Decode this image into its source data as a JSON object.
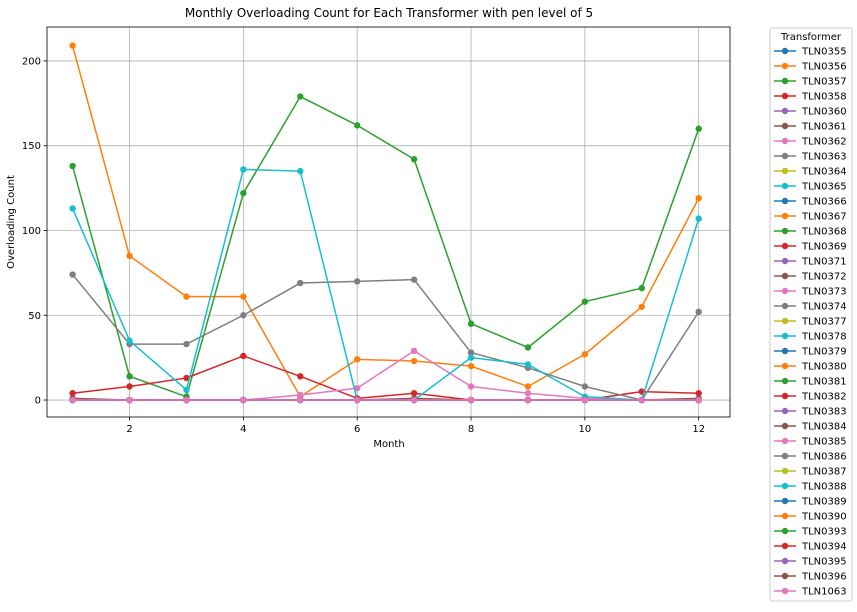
{
  "chart_data": {
    "type": "line",
    "title": "Monthly Overloading Count for Each Transformer with pen level of 5",
    "xlabel": "Month",
    "ylabel": "Overloading Count",
    "xlim": [
      0.55,
      12.55
    ],
    "ylim": [
      -10,
      220
    ],
    "x_ticks": [
      2,
      4,
      6,
      8,
      10,
      12
    ],
    "y_ticks": [
      0,
      50,
      100,
      150,
      200
    ],
    "grid": true,
    "legend_position": "outside-right",
    "legend_title": "Transformer",
    "x": [
      1,
      2,
      3,
      4,
      5,
      6,
      7,
      8,
      9,
      10,
      11,
      12
    ],
    "series": [
      {
        "name": "TLN0355",
        "color": "#1f77b4",
        "values": [
          0,
          0,
          0,
          0,
          0,
          0,
          0,
          0,
          0,
          0,
          0,
          0
        ]
      },
      {
        "name": "TLN0356",
        "color": "#ff7f0e",
        "values": [
          209,
          85,
          61,
          61,
          2,
          24,
          23,
          20,
          8,
          27,
          55,
          119
        ]
      },
      {
        "name": "TLN0357",
        "color": "#2ca02c",
        "values": [
          138,
          14,
          2,
          122,
          179,
          162,
          142,
          45,
          31,
          58,
          66,
          160
        ]
      },
      {
        "name": "TLN0358",
        "color": "#d62728",
        "values": [
          4,
          8,
          13,
          26,
          14,
          1,
          4,
          0,
          0,
          0,
          5,
          4
        ]
      },
      {
        "name": "TLN0360",
        "color": "#9467bd",
        "values": [
          0,
          0,
          0,
          0,
          0,
          0,
          0,
          0,
          0,
          0,
          0,
          0
        ]
      },
      {
        "name": "TLN0361",
        "color": "#8c564b",
        "values": [
          1,
          0,
          0,
          0,
          0,
          0,
          1,
          0,
          0,
          0,
          0,
          1
        ]
      },
      {
        "name": "TLN0362",
        "color": "#e377c2",
        "values": [
          0,
          0,
          0,
          0,
          3,
          7,
          29,
          8,
          4,
          1,
          0,
          0
        ]
      },
      {
        "name": "TLN0363",
        "color": "#7f7f7f",
        "values": [
          74,
          33,
          33,
          50,
          69,
          70,
          71,
          28,
          19,
          8,
          0,
          52
        ]
      },
      {
        "name": "TLN0364",
        "color": "#bcbd22",
        "values": [
          0,
          0,
          0,
          0,
          0,
          0,
          0,
          0,
          0,
          0,
          0,
          0
        ]
      },
      {
        "name": "TLN0365",
        "color": "#17becf",
        "values": [
          113,
          35,
          6,
          136,
          135,
          0,
          0,
          25,
          21,
          2,
          0,
          107
        ]
      },
      {
        "name": "TLN0366",
        "color": "#1f77b4",
        "values": [
          0,
          0,
          0,
          0,
          0,
          0,
          0,
          0,
          0,
          0,
          0,
          0
        ]
      },
      {
        "name": "TLN0367",
        "color": "#ff7f0e",
        "values": [
          0,
          0,
          0,
          0,
          0,
          0,
          0,
          0,
          0,
          0,
          0,
          0
        ]
      },
      {
        "name": "TLN0368",
        "color": "#2ca02c",
        "values": [
          0,
          0,
          0,
          0,
          0,
          0,
          0,
          0,
          0,
          0,
          0,
          0
        ]
      },
      {
        "name": "TLN0369",
        "color": "#d62728",
        "values": [
          0,
          0,
          0,
          0,
          0,
          0,
          0,
          0,
          0,
          0,
          0,
          0
        ]
      },
      {
        "name": "TLN0371",
        "color": "#9467bd",
        "values": [
          0,
          0,
          0,
          0,
          0,
          0,
          0,
          0,
          0,
          0,
          0,
          0
        ]
      },
      {
        "name": "TLN0372",
        "color": "#8c564b",
        "values": [
          0,
          0,
          0,
          0,
          0,
          0,
          0,
          0,
          0,
          0,
          0,
          0
        ]
      },
      {
        "name": "TLN0373",
        "color": "#e377c2",
        "values": [
          0,
          0,
          0,
          0,
          0,
          0,
          0,
          0,
          0,
          0,
          0,
          0
        ]
      },
      {
        "name": "TLN0374",
        "color": "#7f7f7f",
        "values": [
          0,
          0,
          0,
          0,
          0,
          0,
          0,
          0,
          0,
          0,
          0,
          0
        ]
      },
      {
        "name": "TLN0377",
        "color": "#bcbd22",
        "values": [
          0,
          0,
          0,
          0,
          0,
          0,
          0,
          0,
          0,
          0,
          0,
          0
        ]
      },
      {
        "name": "TLN0378",
        "color": "#17becf",
        "values": [
          0,
          0,
          0,
          0,
          0,
          0,
          0,
          0,
          0,
          0,
          0,
          0
        ]
      },
      {
        "name": "TLN0379",
        "color": "#1f77b4",
        "values": [
          0,
          0,
          0,
          0,
          0,
          0,
          0,
          0,
          0,
          0,
          0,
          0
        ]
      },
      {
        "name": "TLN0380",
        "color": "#ff7f0e",
        "values": [
          0,
          0,
          0,
          0,
          0,
          0,
          0,
          0,
          0,
          0,
          0,
          0
        ]
      },
      {
        "name": "TLN0381",
        "color": "#2ca02c",
        "values": [
          0,
          0,
          0,
          0,
          0,
          0,
          0,
          0,
          0,
          0,
          0,
          0
        ]
      },
      {
        "name": "TLN0382",
        "color": "#d62728",
        "values": [
          0,
          0,
          0,
          0,
          0,
          0,
          0,
          0,
          0,
          0,
          0,
          0
        ]
      },
      {
        "name": "TLN0383",
        "color": "#9467bd",
        "values": [
          0,
          0,
          0,
          0,
          0,
          0,
          0,
          0,
          0,
          0,
          0,
          0
        ]
      },
      {
        "name": "TLN0384",
        "color": "#8c564b",
        "values": [
          0,
          0,
          0,
          0,
          0,
          0,
          0,
          0,
          0,
          0,
          0,
          0
        ]
      },
      {
        "name": "TLN0385",
        "color": "#e377c2",
        "values": [
          0,
          0,
          0,
          0,
          0,
          0,
          0,
          0,
          0,
          0,
          0,
          0
        ]
      },
      {
        "name": "TLN0386",
        "color": "#7f7f7f",
        "values": [
          0,
          0,
          0,
          0,
          0,
          0,
          0,
          0,
          0,
          0,
          0,
          0
        ]
      },
      {
        "name": "TLN0387",
        "color": "#bcbd22",
        "values": [
          0,
          0,
          0,
          0,
          0,
          0,
          0,
          0,
          0,
          0,
          0,
          0
        ]
      },
      {
        "name": "TLN0388",
        "color": "#17becf",
        "values": [
          0,
          0,
          0,
          0,
          0,
          0,
          0,
          0,
          0,
          0,
          0,
          0
        ]
      },
      {
        "name": "TLN0389",
        "color": "#1f77b4",
        "values": [
          0,
          0,
          0,
          0,
          0,
          0,
          0,
          0,
          0,
          0,
          0,
          0
        ]
      },
      {
        "name": "TLN0390",
        "color": "#ff7f0e",
        "values": [
          0,
          0,
          0,
          0,
          0,
          0,
          0,
          0,
          0,
          0,
          0,
          0
        ]
      },
      {
        "name": "TLN0393",
        "color": "#2ca02c",
        "values": [
          0,
          0,
          0,
          0,
          0,
          0,
          0,
          0,
          0,
          0,
          0,
          0
        ]
      },
      {
        "name": "TLN0394",
        "color": "#d62728",
        "values": [
          0,
          0,
          0,
          0,
          0,
          0,
          0,
          0,
          0,
          0,
          0,
          0
        ]
      },
      {
        "name": "TLN0395",
        "color": "#9467bd",
        "values": [
          0,
          0,
          0,
          0,
          0,
          0,
          0,
          0,
          0,
          0,
          0,
          0
        ]
      },
      {
        "name": "TLN0396",
        "color": "#8c564b",
        "values": [
          0,
          0,
          0,
          0,
          0,
          0,
          0,
          0,
          0,
          0,
          0,
          0
        ]
      },
      {
        "name": "TLN1063",
        "color": "#e377c2",
        "values": [
          0,
          0,
          0,
          0,
          0,
          0,
          0,
          0,
          0,
          0,
          0,
          0
        ]
      }
    ]
  }
}
